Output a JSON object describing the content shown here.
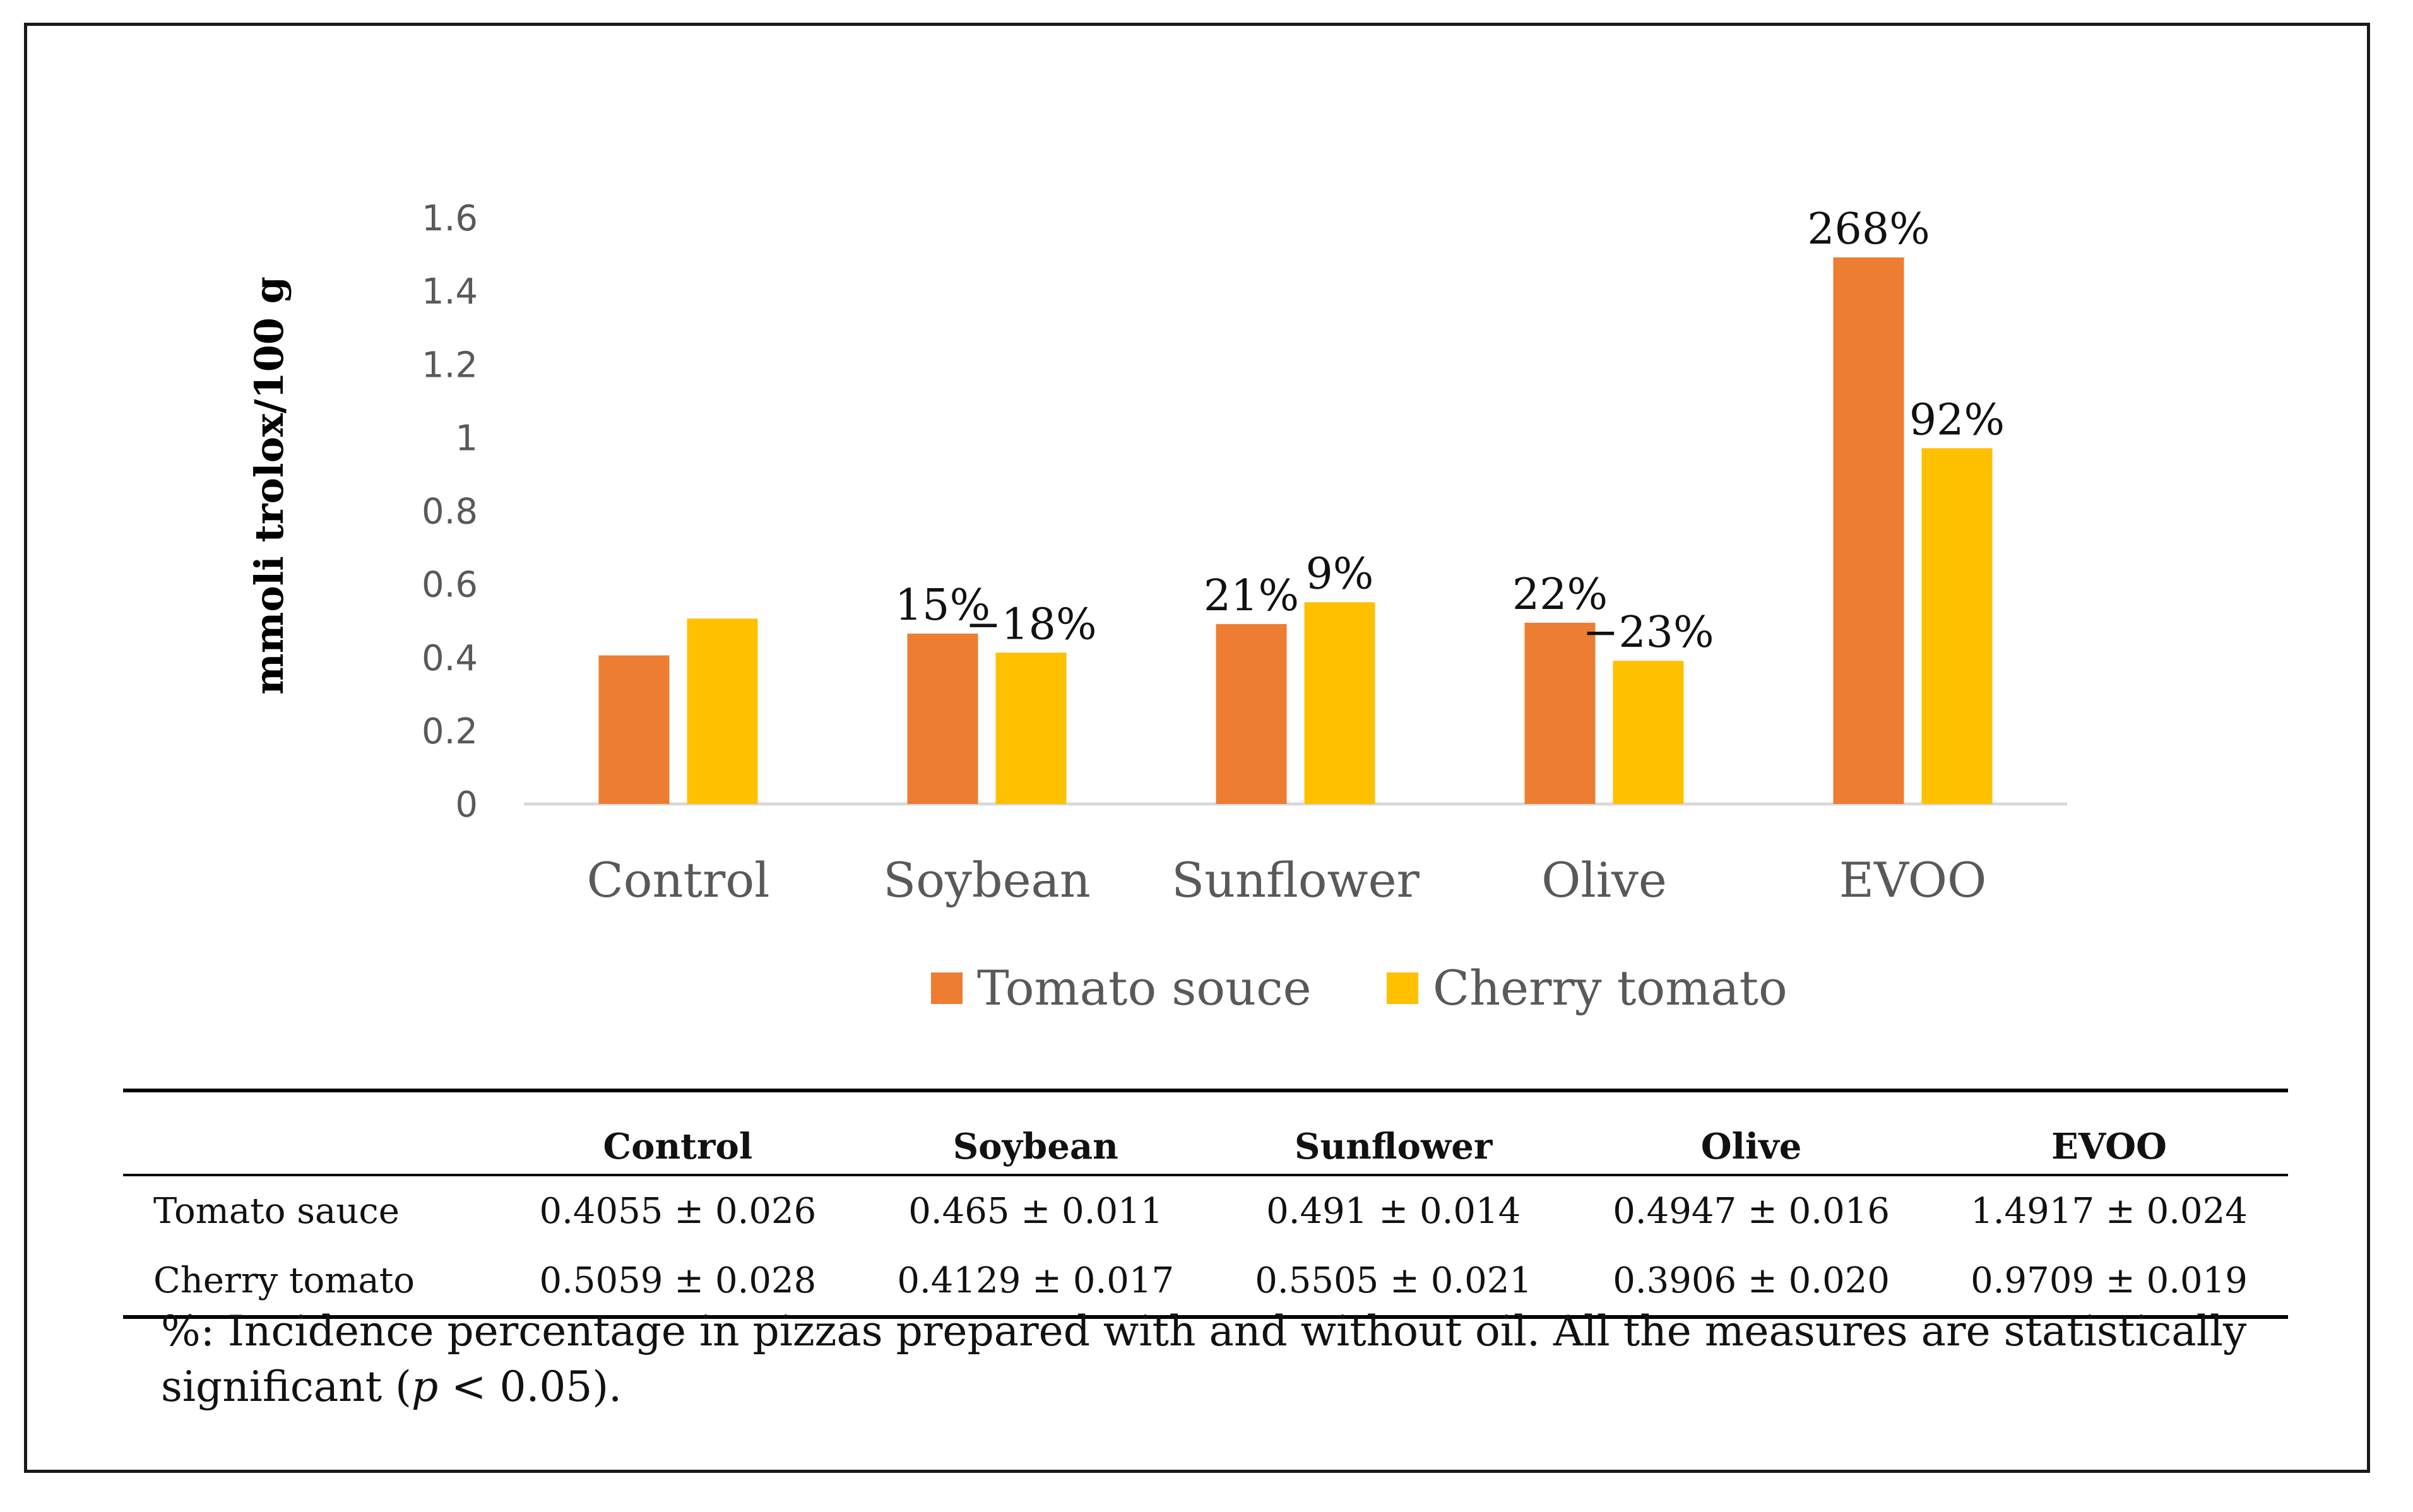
{
  "chart_data": {
    "type": "bar",
    "title": "",
    "xlabel": "",
    "ylabel": "mmoli trolox/100 g",
    "ylim": [
      0,
      1.6
    ],
    "yticks": [
      "0",
      "0.2",
      "0.4",
      "0.6",
      "0.8",
      "1",
      "1.2",
      "1.4",
      "1.6"
    ],
    "ytick_values": [
      0,
      0.2,
      0.4,
      0.6,
      0.8,
      1,
      1.2,
      1.4,
      1.6
    ],
    "categories": [
      "Control",
      "Soybean",
      "Sunflower",
      "Olive",
      "EVOO"
    ],
    "series": [
      {
        "name": "Tomato souce",
        "color": "#ED7D31",
        "values": [
          0.4055,
          0.465,
          0.491,
          0.4947,
          1.4917
        ],
        "labels": [
          "",
          "15%",
          "21%",
          "22%",
          "268%"
        ]
      },
      {
        "name": "Cherry tomato",
        "color": "#FFC000",
        "values": [
          0.5059,
          0.4129,
          0.5505,
          0.3906,
          0.9709
        ],
        "labels": [
          "",
          "−18%",
          "9%",
          "−23%",
          "92%"
        ]
      }
    ],
    "legend_position": "bottom",
    "grid": false
  },
  "table": {
    "headers": [
      "",
      "Control",
      "Soybean",
      "Sunflower",
      "Olive",
      "EVOO"
    ],
    "rows": [
      {
        "label": "Tomato sauce",
        "cells": [
          "0.4055 ± 0.026",
          "0.465 ± 0.011",
          "0.491 ± 0.014",
          "0.4947 ± 0.016",
          "1.4917 ± 0.024"
        ]
      },
      {
        "label": "Cherry tomato",
        "cells": [
          "0.5059 ± 0.028",
          "0.4129 ± 0.017",
          "0.5505 ± 0.021",
          "0.3906 ± 0.020",
          "0.9709 ± 0.019"
        ]
      }
    ]
  },
  "footnote": {
    "text_before": "%: Incidence percentage in pizzas prepared with and without oil. All the measures are statistically significant (",
    "p_symbol": "p",
    "text_after": " < 0.05)."
  }
}
